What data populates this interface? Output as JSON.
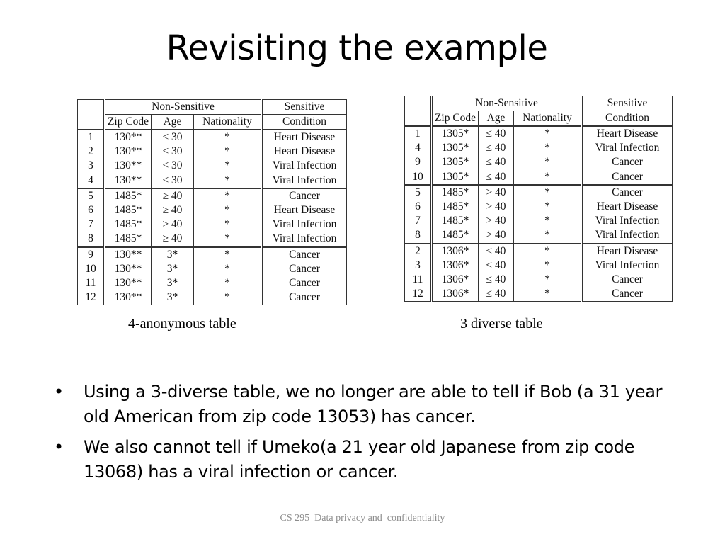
{
  "slide": {
    "title": "Revisiting the example",
    "footer": "CS 295  Data privacy and  confidentiality"
  },
  "tables": [
    {
      "caption": "4-anonymous table",
      "header_groups": [
        "Non-Sensitive",
        "Sensitive"
      ],
      "columns": [
        "Zip Code",
        "Age",
        "Nationality",
        "Condition"
      ],
      "groups": [
        [
          [
            "1",
            "130**",
            "< 30",
            "*",
            "Heart Disease"
          ],
          [
            "2",
            "130**",
            "< 30",
            "*",
            "Heart Disease"
          ],
          [
            "3",
            "130**",
            "< 30",
            "*",
            "Viral Infection"
          ],
          [
            "4",
            "130**",
            "< 30",
            "*",
            "Viral Infection"
          ]
        ],
        [
          [
            "5",
            "1485*",
            "≥ 40",
            "*",
            "Cancer"
          ],
          [
            "6",
            "1485*",
            "≥ 40",
            "*",
            "Heart Disease"
          ],
          [
            "7",
            "1485*",
            "≥ 40",
            "*",
            "Viral Infection"
          ],
          [
            "8",
            "1485*",
            "≥ 40",
            "*",
            "Viral Infection"
          ]
        ],
        [
          [
            "9",
            "130**",
            "3*",
            "*",
            "Cancer"
          ],
          [
            "10",
            "130**",
            "3*",
            "*",
            "Cancer"
          ],
          [
            "11",
            "130**",
            "3*",
            "*",
            "Cancer"
          ],
          [
            "12",
            "130**",
            "3*",
            "*",
            "Cancer"
          ]
        ]
      ]
    },
    {
      "caption": "3 diverse table",
      "header_groups": [
        "Non-Sensitive",
        "Sensitive"
      ],
      "columns": [
        "Zip Code",
        "Age",
        "Nationality",
        "Condition"
      ],
      "groups": [
        [
          [
            "1",
            "1305*",
            "≤ 40",
            "*",
            "Heart Disease"
          ],
          [
            "4",
            "1305*",
            "≤ 40",
            "*",
            "Viral Infection"
          ],
          [
            "9",
            "1305*",
            "≤ 40",
            "*",
            "Cancer"
          ],
          [
            "10",
            "1305*",
            "≤ 40",
            "*",
            "Cancer"
          ]
        ],
        [
          [
            "5",
            "1485*",
            "> 40",
            "*",
            "Cancer"
          ],
          [
            "6",
            "1485*",
            "> 40",
            "*",
            "Heart Disease"
          ],
          [
            "7",
            "1485*",
            "> 40",
            "*",
            "Viral Infection"
          ],
          [
            "8",
            "1485*",
            "> 40",
            "*",
            "Viral Infection"
          ]
        ],
        [
          [
            "2",
            "1306*",
            "≤ 40",
            "*",
            "Heart Disease"
          ],
          [
            "3",
            "1306*",
            "≤ 40",
            "*",
            "Viral Infection"
          ],
          [
            "11",
            "1306*",
            "≤ 40",
            "*",
            "Cancer"
          ],
          [
            "12",
            "1306*",
            "≤ 40",
            "*",
            "Cancer"
          ]
        ]
      ]
    }
  ],
  "bullets": [
    {
      "marker": "•",
      "text": "Using a 3-diverse table, we no longer are able to tell if Bob (a 31 year old American from zip code 13053) has cancer."
    },
    {
      "marker": "•",
      "text": "We also cannot tell if Umeko(a 21 year old Japanese from zip code 13068) has a viral infection or cancer."
    }
  ]
}
